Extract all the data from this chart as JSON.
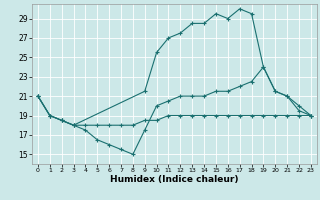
{
  "xlabel": "Humidex (Indice chaleur)",
  "background_color": "#cce8e8",
  "grid_color": "#ffffff",
  "line_color": "#1a7070",
  "xlim": [
    -0.5,
    23.5
  ],
  "ylim": [
    14.0,
    30.5
  ],
  "xticks": [
    0,
    1,
    2,
    3,
    4,
    5,
    6,
    7,
    8,
    9,
    10,
    11,
    12,
    13,
    14,
    15,
    16,
    17,
    18,
    19,
    20,
    21,
    22,
    23
  ],
  "yticks": [
    15,
    17,
    19,
    21,
    23,
    25,
    27,
    29
  ],
  "line1_x": [
    0,
    1,
    2,
    3,
    4,
    5,
    6,
    7,
    8,
    9,
    10,
    11,
    12,
    13,
    14,
    15,
    16,
    17,
    18,
    19,
    20,
    21,
    22,
    23
  ],
  "line1_y": [
    21,
    19,
    18.5,
    18,
    18,
    18,
    18,
    18,
    18,
    18.5,
    18.5,
    19,
    19,
    19,
    19,
    19,
    19,
    19,
    19,
    19,
    19,
    19,
    19,
    19
  ],
  "line2_x": [
    0,
    1,
    2,
    3,
    4,
    5,
    6,
    7,
    8,
    9,
    10,
    11,
    12,
    13,
    14,
    15,
    16,
    17,
    18,
    19,
    20,
    21,
    22,
    23
  ],
  "line2_y": [
    21,
    19,
    18.5,
    18,
    17.5,
    16.5,
    16,
    15.5,
    15,
    17.5,
    20,
    20.5,
    21,
    21,
    21,
    21.5,
    21.5,
    22,
    22.5,
    24,
    21.5,
    21,
    19.5,
    19
  ],
  "line3_x": [
    0,
    1,
    2,
    3,
    9,
    10,
    11,
    12,
    13,
    14,
    15,
    16,
    17,
    18,
    19,
    20,
    21,
    22,
    23
  ],
  "line3_y": [
    21,
    19,
    18.5,
    18,
    21.5,
    25.5,
    27,
    27.5,
    28.5,
    28.5,
    29.5,
    29,
    30,
    29.5,
    24,
    21.5,
    21,
    20,
    19
  ]
}
